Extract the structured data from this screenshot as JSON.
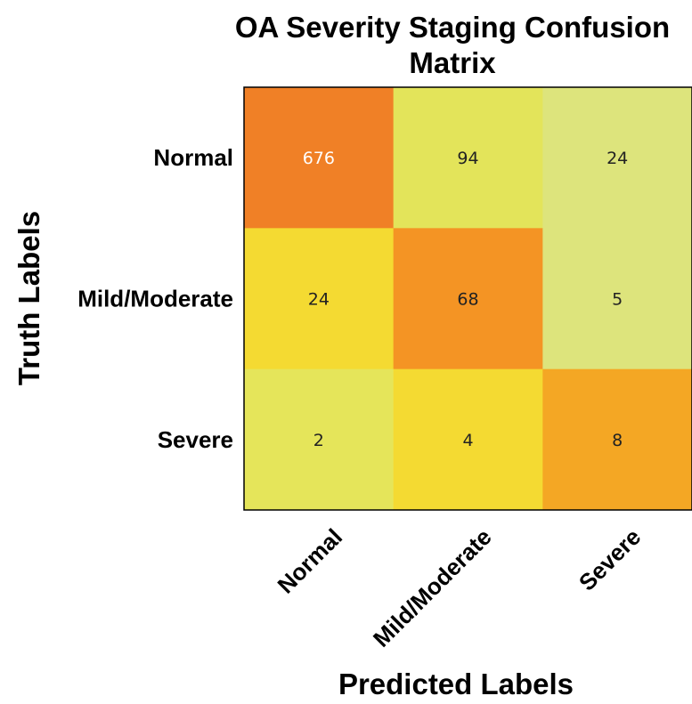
{
  "chart_data": {
    "type": "heatmap",
    "title": [
      "OA Severity Staging Confusion",
      "Matrix"
    ],
    "xlabel": "Predicted Labels",
    "ylabel": "Truth Labels",
    "x_categories": [
      "Normal",
      "Mild/Moderate",
      "Severe"
    ],
    "y_categories": [
      "Normal",
      "Mild/Moderate",
      "Severe"
    ],
    "values": [
      [
        676,
        94,
        24
      ],
      [
        24,
        68,
        5
      ],
      [
        2,
        4,
        8
      ]
    ],
    "cell_colors": [
      [
        "#f08026",
        "#e3e45a",
        "#dde47c"
      ],
      [
        "#f4da32",
        "#f49424",
        "#dde47c"
      ],
      [
        "#e5e55a",
        "#f4da32",
        "#f4a724"
      ]
    ],
    "label_colors": [
      [
        "#ffffff",
        "#222222",
        "#222222"
      ],
      [
        "#222222",
        "#222222",
        "#222222"
      ],
      [
        "#222222",
        "#222222",
        "#222222"
      ]
    ],
    "grid": false
  }
}
